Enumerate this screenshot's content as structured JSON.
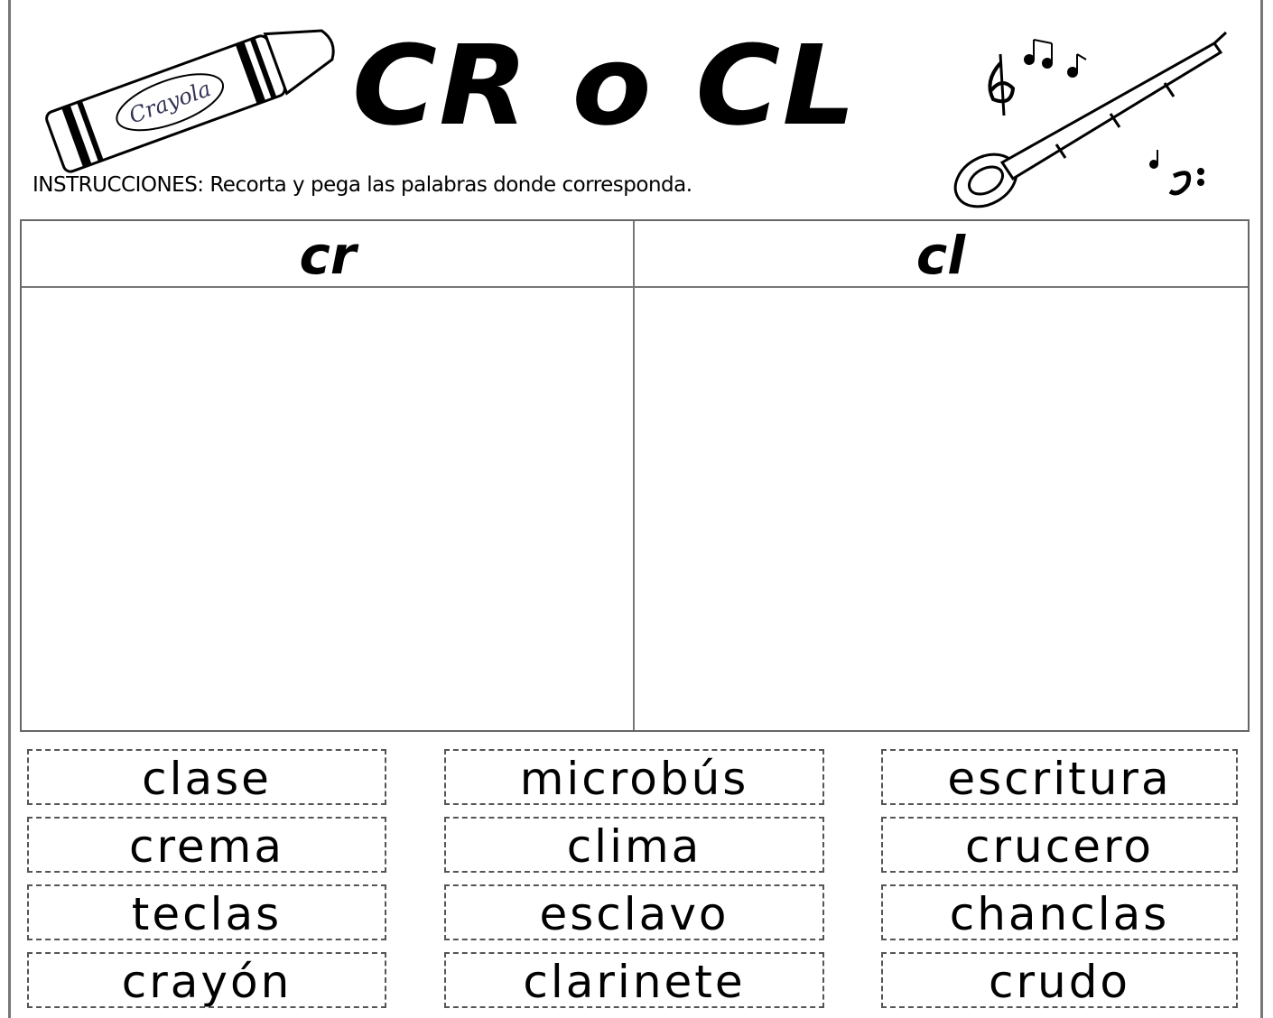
{
  "header": {
    "title": "CR o CL",
    "crayon_label": "Crayola",
    "instructions": "INSTRUCCIONES: Recorta y pega las palabras donde corresponda."
  },
  "table": {
    "headers": [
      "cr",
      "cl"
    ]
  },
  "word_cards": {
    "rows": [
      [
        "clase",
        "microbús",
        "escritura"
      ],
      [
        "crema",
        "clima",
        "crucero"
      ],
      [
        "teclas",
        "esclavo",
        "chanclas"
      ],
      [
        "crayón",
        "clarinete",
        "crudo"
      ]
    ]
  }
}
